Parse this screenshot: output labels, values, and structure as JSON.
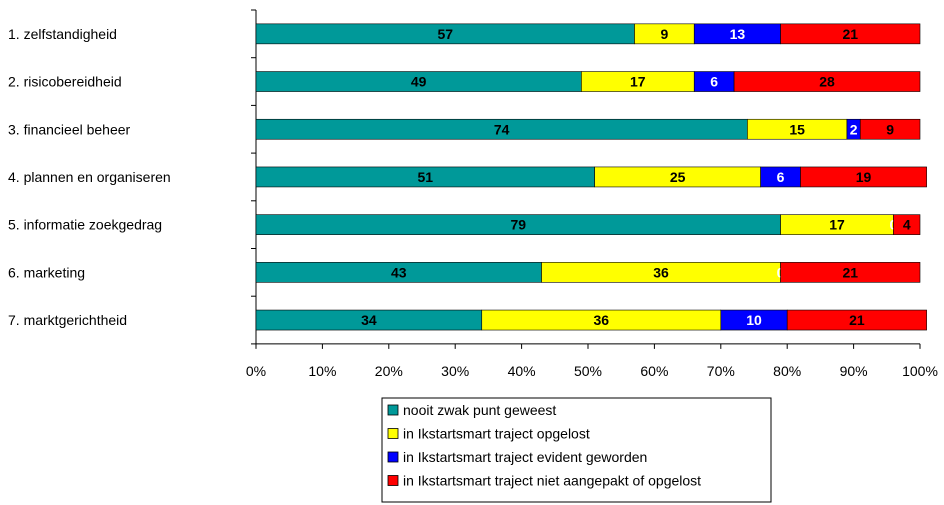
{
  "chart_data": {
    "type": "bar",
    "orientation": "horizontal",
    "stacked": "percent",
    "categories": [
      "1. zelfstandigheid",
      "2. risicobereidheid",
      "3. financieel beheer",
      "4. plannen en organiseren",
      "5. informatie zoekgedrag",
      "6. marketing",
      "7. marktgerichtheid"
    ],
    "series": [
      {
        "name": "nooit zwak punt geweest",
        "color": "#009999",
        "label_color": "#000000",
        "values": [
          57,
          49,
          74,
          51,
          79,
          43,
          34
        ]
      },
      {
        "name": "in Ikstartsmart traject opgelost",
        "color": "#ffff00",
        "label_color": "#000000",
        "values": [
          9,
          17,
          15,
          25,
          17,
          36,
          36
        ]
      },
      {
        "name": "in Ikstartsmart traject evident geworden",
        "color": "#0000ff",
        "label_color": "#ffffff",
        "values": [
          13,
          6,
          2,
          6,
          0,
          0,
          10
        ]
      },
      {
        "name": "in Ikstartsmart traject niet aangepakt of opgelost",
        "color": "#ff0000",
        "label_color": "#000000",
        "values": [
          21,
          28,
          9,
          19,
          4,
          21,
          21
        ]
      }
    ],
    "xlim": [
      0,
      100
    ],
    "xticks": [
      "0%",
      "10%",
      "20%",
      "30%",
      "40%",
      "50%",
      "60%",
      "70%",
      "80%",
      "90%",
      "100%"
    ],
    "title": "",
    "xlabel": "",
    "ylabel": "",
    "grid": false,
    "legend_position": "bottom"
  }
}
